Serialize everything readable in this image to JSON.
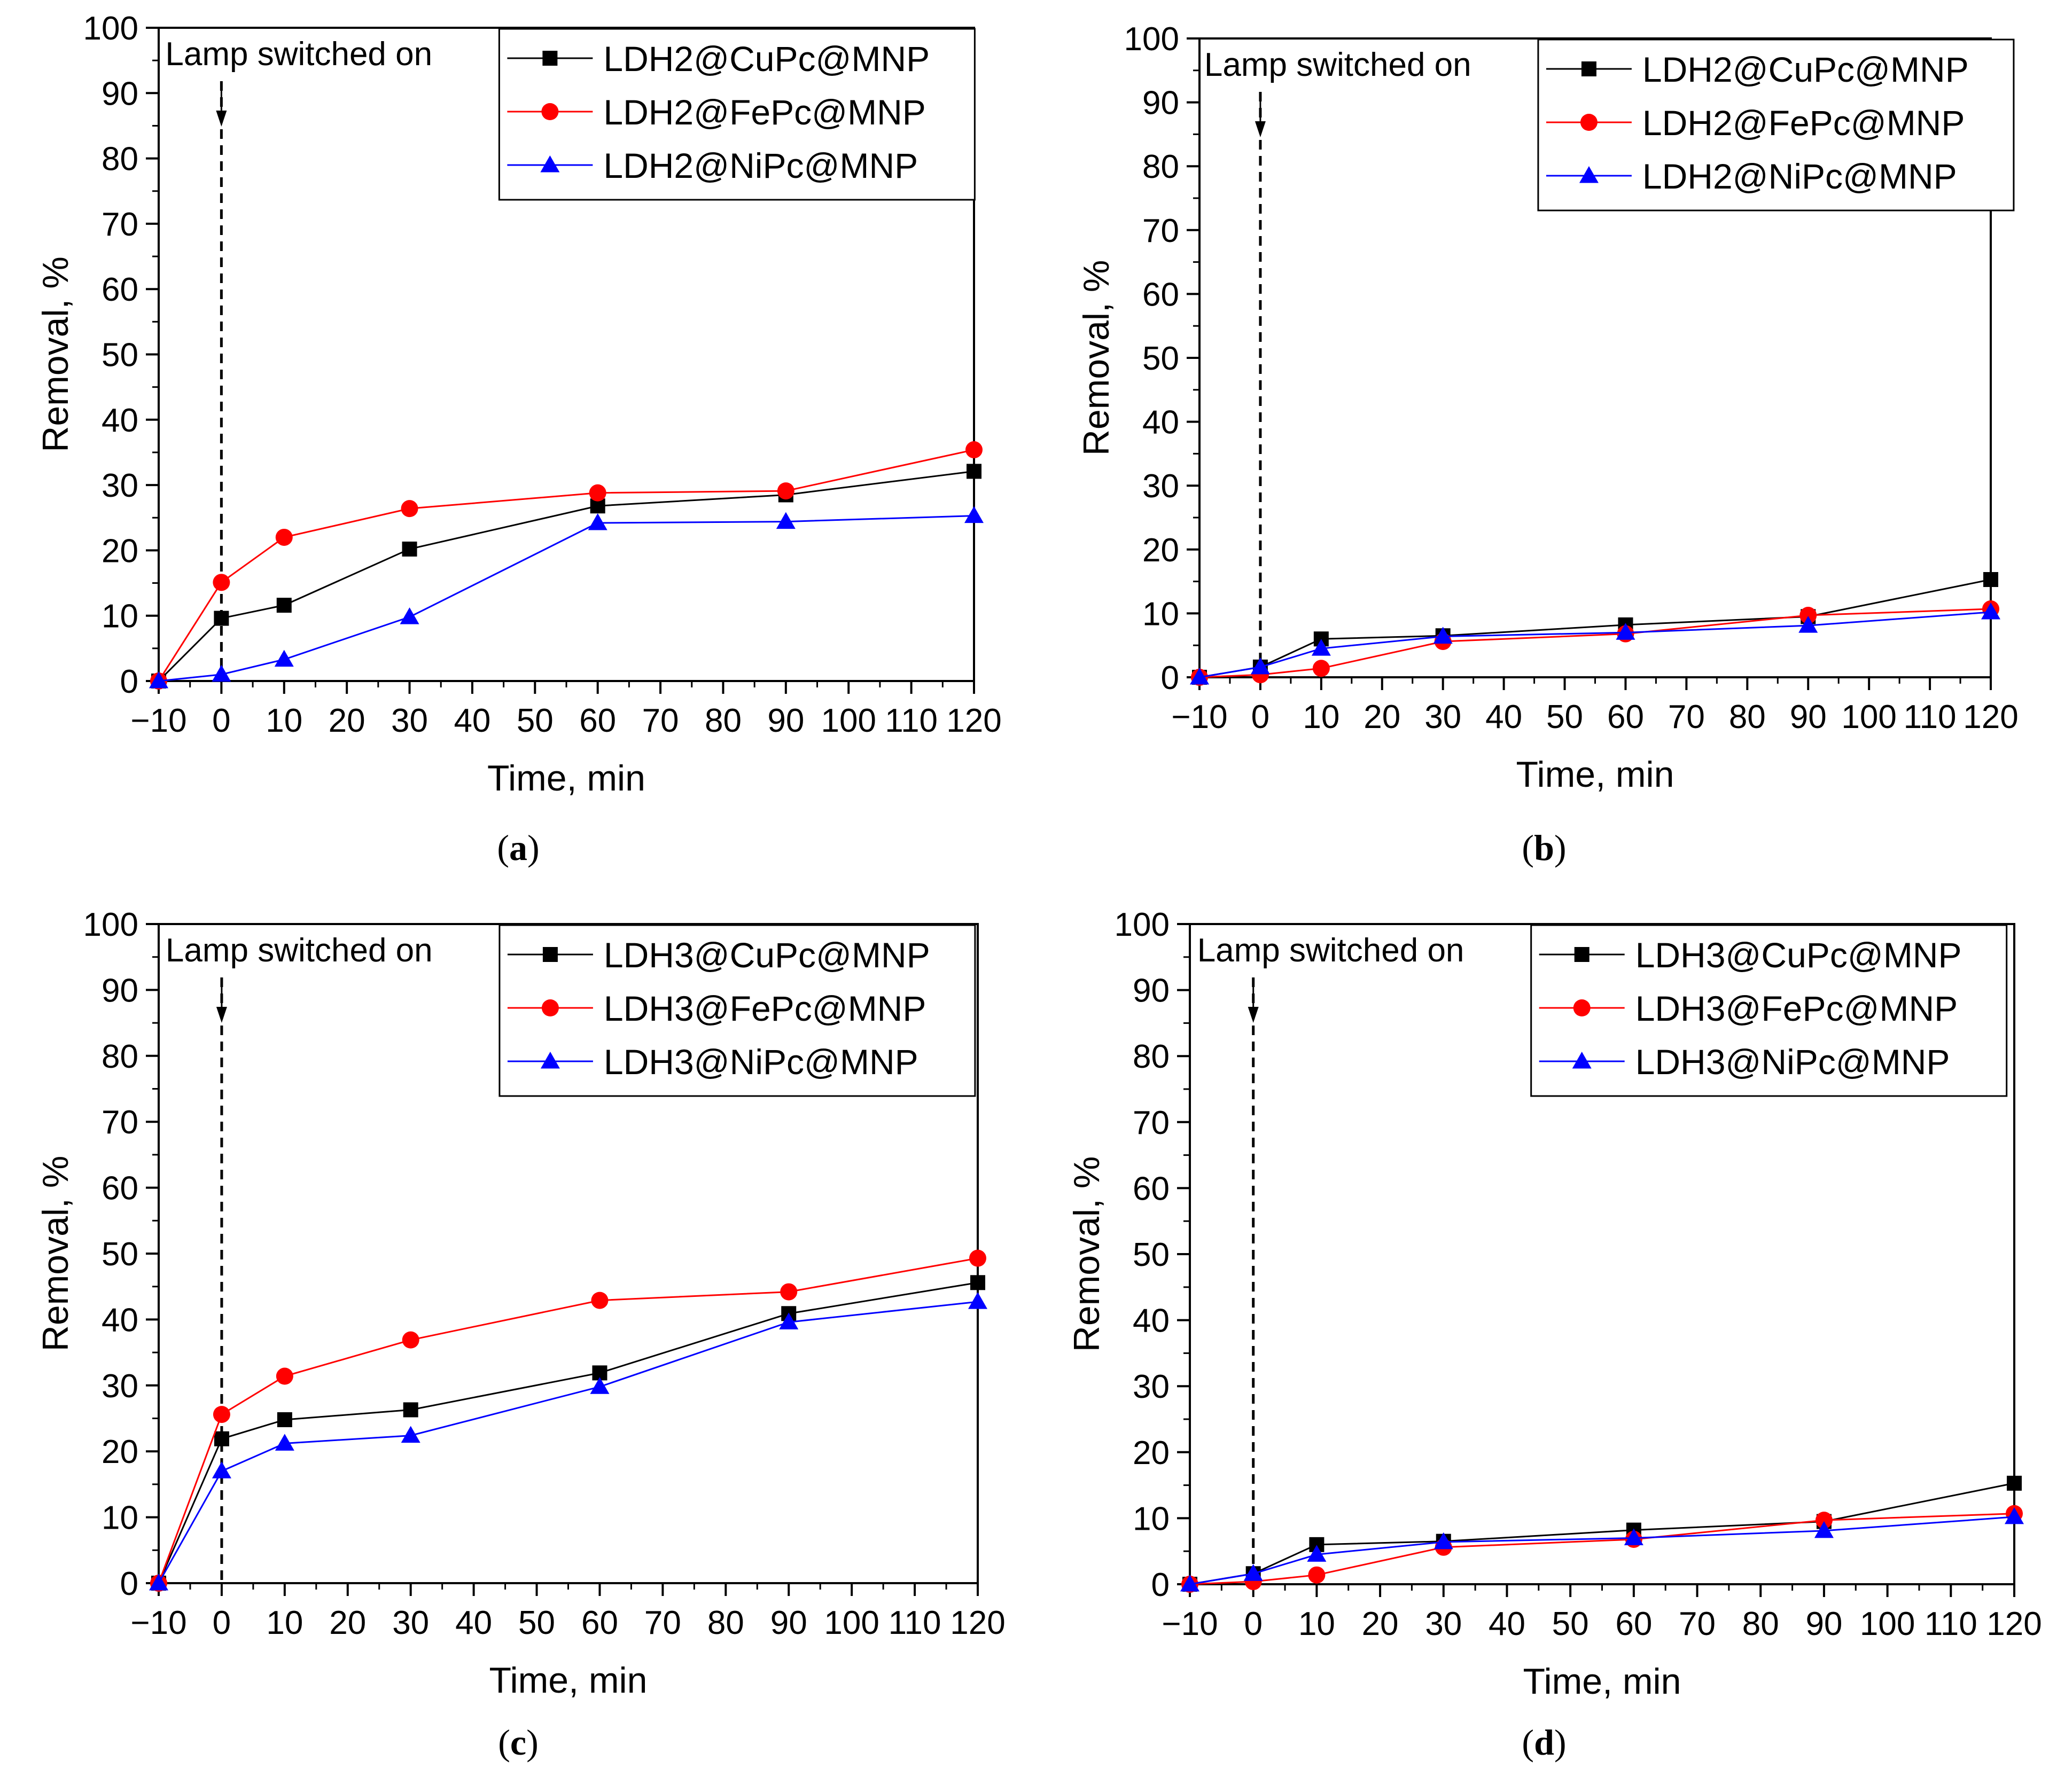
{
  "colors": {
    "cu": "#000000",
    "fe": "#ff0000",
    "ni": "#0000ff",
    "axis": "#000000"
  },
  "chart_data": [
    {
      "type": "line",
      "panel": "a",
      "caption_letter": "a",
      "title": "",
      "xlabel": "Time, min",
      "ylabel": "Removal, %",
      "xlim": [
        -10,
        120
      ],
      "ylim": [
        0,
        100
      ],
      "xticks": [
        -10,
        0,
        10,
        20,
        30,
        40,
        50,
        60,
        70,
        80,
        90,
        100,
        110,
        120
      ],
      "xtick_labels": [
        "−10",
        "0",
        "10",
        "20",
        "30",
        "40",
        "50",
        "60",
        "70",
        "80",
        "90",
        "100",
        "110",
        "120"
      ],
      "yticks": [
        0,
        10,
        20,
        30,
        40,
        50,
        60,
        70,
        80,
        90,
        100
      ],
      "annotation": "Lamp switched on",
      "annotation_x": 0,
      "x": [
        -10,
        0,
        10,
        30,
        60,
        90,
        120
      ],
      "series": [
        {
          "name": "LDH2@CuPc@MNP",
          "marker": "square",
          "color": "#000000",
          "values": [
            0,
            9.6,
            11.6,
            20.2,
            26.8,
            28.5,
            32.1
          ]
        },
        {
          "name": "LDH2@FePc@MNP",
          "marker": "circle",
          "color": "#ff0000",
          "values": [
            0,
            15.1,
            22.0,
            26.4,
            28.8,
            29.1,
            35.4
          ]
        },
        {
          "name": "LDH2@NiPc@MNP",
          "marker": "triangle",
          "color": "#0000ff",
          "values": [
            0,
            1.0,
            3.3,
            9.8,
            24.2,
            24.4,
            25.3
          ]
        }
      ]
    },
    {
      "type": "line",
      "panel": "b",
      "caption_letter": "b",
      "title": "",
      "xlabel": "Time, min",
      "ylabel": "Removal, %",
      "xlim": [
        -10,
        120
      ],
      "ylim": [
        0,
        100
      ],
      "xticks": [
        -10,
        0,
        10,
        20,
        30,
        40,
        50,
        60,
        70,
        80,
        90,
        100,
        110,
        120
      ],
      "xtick_labels": [
        "−10",
        "0",
        "10",
        "20",
        "30",
        "40",
        "50",
        "60",
        "70",
        "80",
        "90",
        "100",
        "110",
        "120"
      ],
      "yticks": [
        0,
        10,
        20,
        30,
        40,
        50,
        60,
        70,
        80,
        90,
        100
      ],
      "annotation": "Lamp switched on",
      "annotation_x": 0,
      "x": [
        -10,
        0,
        10,
        30,
        60,
        90,
        120
      ],
      "series": [
        {
          "name": "LDH2@CuPc@MNP",
          "marker": "square",
          "color": "#000000",
          "values": [
            0,
            1.6,
            6.0,
            6.5,
            8.2,
            9.5,
            15.3
          ]
        },
        {
          "name": "LDH2@FePc@MNP",
          "marker": "circle",
          "color": "#ff0000",
          "values": [
            0,
            0.4,
            1.4,
            5.6,
            6.8,
            9.7,
            10.7
          ]
        },
        {
          "name": "LDH2@NiPc@MNP",
          "marker": "triangle",
          "color": "#0000ff",
          "values": [
            0,
            1.6,
            4.5,
            6.4,
            7.0,
            8.1,
            10.2
          ]
        }
      ]
    },
    {
      "type": "line",
      "panel": "c",
      "caption_letter": "c",
      "title": "",
      "xlabel": "Time, min",
      "ylabel": "Removal, %",
      "xlim": [
        -10,
        120
      ],
      "ylim": [
        0,
        100
      ],
      "xticks": [
        -10,
        0,
        10,
        20,
        30,
        40,
        50,
        60,
        70,
        80,
        90,
        100,
        110,
        120
      ],
      "xtick_labels": [
        "−10",
        "0",
        "10",
        "20",
        "30",
        "40",
        "50",
        "60",
        "70",
        "80",
        "90",
        "100",
        "110",
        "120"
      ],
      "yticks": [
        0,
        10,
        20,
        30,
        40,
        50,
        60,
        70,
        80,
        90,
        100
      ],
      "annotation": "Lamp switched on",
      "annotation_x": 0,
      "x": [
        -10,
        0,
        10,
        30,
        60,
        90,
        120
      ],
      "series": [
        {
          "name": "LDH3@CuPc@MNP",
          "marker": "square",
          "color": "#000000",
          "values": [
            0,
            21.9,
            24.8,
            26.3,
            31.9,
            40.9,
            45.6
          ]
        },
        {
          "name": "LDH3@FePc@MNP",
          "marker": "circle",
          "color": "#ff0000",
          "values": [
            0,
            25.6,
            31.4,
            36.9,
            42.9,
            44.2,
            49.3
          ]
        },
        {
          "name": "LDH3@NiPc@MNP",
          "marker": "triangle",
          "color": "#0000ff",
          "values": [
            0,
            17.0,
            21.2,
            22.4,
            29.8,
            39.6,
            42.7
          ]
        }
      ]
    },
    {
      "type": "line",
      "panel": "d",
      "caption_letter": "d",
      "title": "",
      "xlabel": "Time, min",
      "ylabel": "Removal, %",
      "xlim": [
        -10,
        120
      ],
      "ylim": [
        0,
        100
      ],
      "xticks": [
        -10,
        0,
        10,
        20,
        30,
        40,
        50,
        60,
        70,
        80,
        90,
        100,
        110,
        120
      ],
      "xtick_labels": [
        "−10",
        "0",
        "10",
        "20",
        "30",
        "40",
        "50",
        "60",
        "70",
        "80",
        "90",
        "100",
        "110",
        "120"
      ],
      "yticks": [
        0,
        10,
        20,
        30,
        40,
        50,
        60,
        70,
        80,
        90,
        100
      ],
      "annotation": "Lamp switched on",
      "annotation_x": 0,
      "x": [
        -10,
        0,
        10,
        30,
        60,
        90,
        120
      ],
      "series": [
        {
          "name": "LDH3@CuPc@MNP",
          "marker": "square",
          "color": "#000000",
          "values": [
            0,
            1.6,
            6.0,
            6.5,
            8.2,
            9.5,
            15.3
          ]
        },
        {
          "name": "LDH3@FePc@MNP",
          "marker": "circle",
          "color": "#ff0000",
          "values": [
            0,
            0.4,
            1.4,
            5.6,
            6.8,
            9.7,
            10.7
          ]
        },
        {
          "name": "LDH3@NiPc@MNP",
          "marker": "triangle",
          "color": "#0000ff",
          "values": [
            0,
            1.6,
            4.5,
            6.4,
            7.0,
            8.1,
            10.2
          ]
        }
      ]
    }
  ]
}
